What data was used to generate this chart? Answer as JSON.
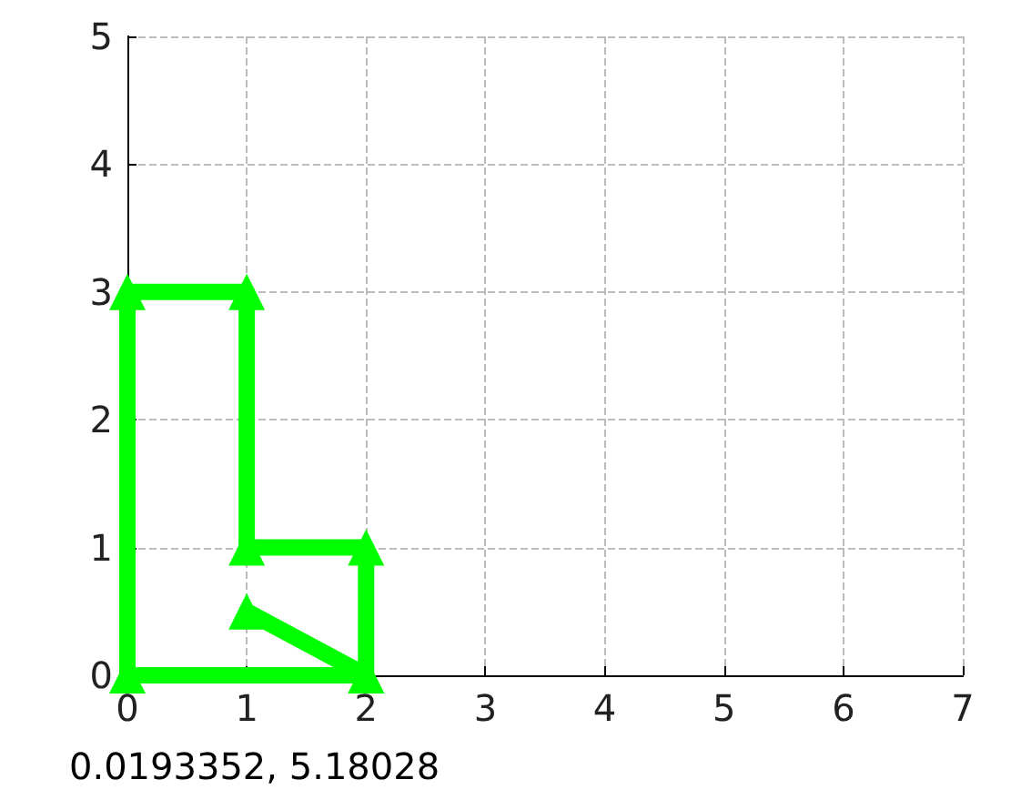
{
  "chart_data": {
    "type": "line",
    "x": [
      1,
      2,
      0,
      0,
      1,
      1,
      2,
      2
    ],
    "series": [
      {
        "color": "#00ff00",
        "values": [
          0.5,
          0,
          0,
          3,
          3,
          1,
          1,
          0
        ]
      }
    ],
    "xlim": [
      0,
      7
    ],
    "xticks": [
      0,
      1,
      2,
      3,
      4,
      5,
      6,
      7
    ],
    "ylim": [
      0,
      5
    ],
    "yticks": [
      0,
      1,
      2,
      3,
      4,
      5
    ],
    "grid": true,
    "marker": "triangle",
    "line_style": "solid",
    "annotations": [
      "0.0193352, 5.18028"
    ]
  }
}
